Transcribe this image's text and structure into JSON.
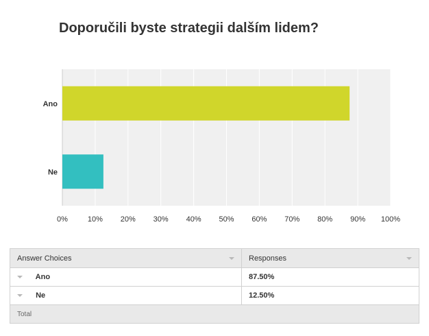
{
  "question": {
    "title": "Doporučili byste strategii dalším lidem?"
  },
  "colors": {
    "bar_ano": "#d0d62b",
    "bar_ne": "#33bfc0",
    "plot_bg": "#f0f0f0"
  },
  "chart_data": {
    "type": "bar",
    "orientation": "horizontal",
    "categories": [
      "Ano",
      "Ne"
    ],
    "values": [
      87.5,
      12.5
    ],
    "xlim": [
      0,
      100
    ],
    "xticks": [
      "0%",
      "10%",
      "20%",
      "30%",
      "40%",
      "50%",
      "60%",
      "70%",
      "80%",
      "90%",
      "100%"
    ],
    "grid": true
  },
  "table": {
    "headers": [
      "Answer Choices",
      "Responses"
    ],
    "rows": [
      {
        "choice": "Ano",
        "response": "87.50%"
      },
      {
        "choice": "Ne",
        "response": "12.50%"
      }
    ],
    "footer": "Total"
  }
}
